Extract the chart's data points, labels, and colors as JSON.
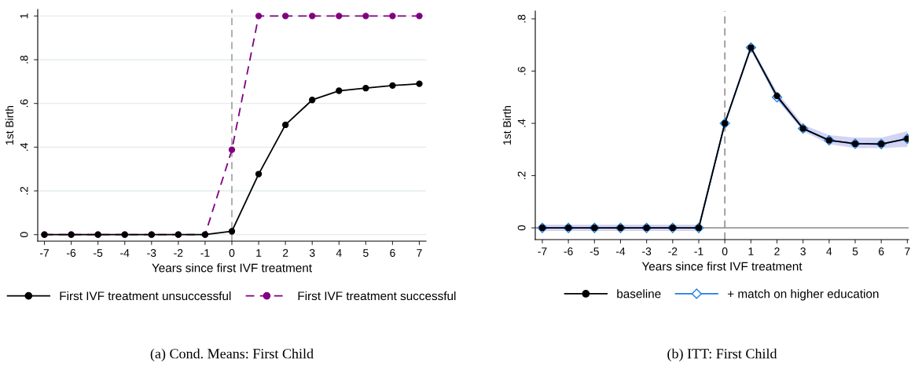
{
  "chart_data": [
    {
      "type": "line",
      "xlabel": "Years since first IVF treatment",
      "ylabel": "1st Birth",
      "x": [
        -7,
        -6,
        -5,
        -4,
        -3,
        -2,
        -1,
        0,
        1,
        2,
        3,
        4,
        5,
        6,
        7
      ],
      "series": [
        {
          "name": "First IVF treatment unsuccessful",
          "color": "#000000",
          "marker": "circle",
          "line_style": "solid",
          "values": [
            0,
            0,
            0,
            0,
            0,
            0,
            0,
            0.015,
            0.277,
            0.502,
            0.616,
            0.658,
            0.67,
            0.682,
            0.69
          ]
        },
        {
          "name": "First IVF treatment successful",
          "color": "#800080",
          "marker": "circle",
          "line_style": "dashed",
          "values": [
            0,
            0,
            0,
            0,
            0,
            0,
            0,
            0.388,
            1,
            1,
            1,
            1,
            1,
            1,
            1
          ]
        }
      ],
      "xlim": [
        -7.25,
        7.25
      ],
      "xticks": [
        -7,
        -6,
        -5,
        -4,
        -3,
        -2,
        -1,
        0,
        1,
        2,
        3,
        4,
        5,
        6,
        7
      ],
      "ylim": [
        -0.03,
        1.03
      ],
      "yticks": [
        0,
        {
          "value": 0.2,
          "label": ".2"
        },
        {
          "value": 0.4,
          "label": ".4"
        },
        {
          "value": 0.6,
          "label": ".6"
        },
        {
          "value": 0.8,
          "label": ".8"
        },
        1
      ],
      "grid": "y",
      "legend": "bottom",
      "ref_lines": [
        {
          "axis": "x",
          "value": 0,
          "color": "#999999",
          "line_style": "dashed"
        }
      ],
      "annotations": [
        "(a) Cond. Means: First Child"
      ]
    },
    {
      "type": "line",
      "xlabel": "Years since first IVF treatment",
      "ylabel": "1st Birth",
      "x": [
        -7,
        -6,
        -5,
        -4,
        -3,
        -2,
        -1,
        0,
        1,
        2,
        3,
        4,
        5,
        6,
        7
      ],
      "series": [
        {
          "name": "baseline",
          "color": "#000000",
          "marker": "circle",
          "line_style": "solid",
          "values": [
            0,
            0,
            0,
            0,
            0,
            0,
            0,
            0.4,
            0.69,
            0.505,
            0.38,
            0.335,
            0.322,
            0.321,
            0.341
          ]
        },
        {
          "name": "+ match on higher education",
          "color": "#1f7fe0",
          "marker": "diamond",
          "line_style": "solid",
          "values": [
            0,
            0,
            0,
            0,
            0,
            0,
            0,
            0.4,
            0.69,
            0.5,
            0.38,
            0.335,
            0.322,
            0.321,
            0.341
          ],
          "lower": [
            -0.012,
            -0.012,
            -0.012,
            -0.012,
            -0.012,
            -0.012,
            -0.012,
            0.39,
            0.68,
            0.49,
            0.37,
            0.32,
            0.305,
            0.305,
            0.31
          ],
          "upper": [
            0.012,
            0.012,
            0.012,
            0.012,
            0.012,
            0.012,
            0.012,
            0.41,
            0.7,
            0.52,
            0.395,
            0.355,
            0.345,
            0.345,
            0.37
          ]
        }
      ],
      "xlim": [
        -7.27,
        7.05
      ],
      "xticks": [
        -7,
        -6,
        -5,
        -4,
        -3,
        -2,
        -1,
        0,
        1,
        2,
        3,
        4,
        5,
        6,
        7
      ],
      "ylim": [
        -0.045,
        0.83
      ],
      "yticks": [
        0,
        {
          "value": 0.2,
          "label": ".2"
        },
        {
          "value": 0.4,
          "label": ".4"
        },
        {
          "value": 0.6,
          "label": ".6"
        },
        {
          "value": 0.8,
          "label": ".8"
        }
      ],
      "grid": false,
      "legend": "bottom",
      "ref_lines": [
        {
          "axis": "x",
          "value": 0,
          "color": "#888888",
          "line_style": "dashed"
        },
        {
          "axis": "y",
          "value": 0,
          "color": "#888888",
          "line_style": "solid"
        }
      ],
      "annotations": [
        "(b) ITT: First Child"
      ]
    }
  ]
}
